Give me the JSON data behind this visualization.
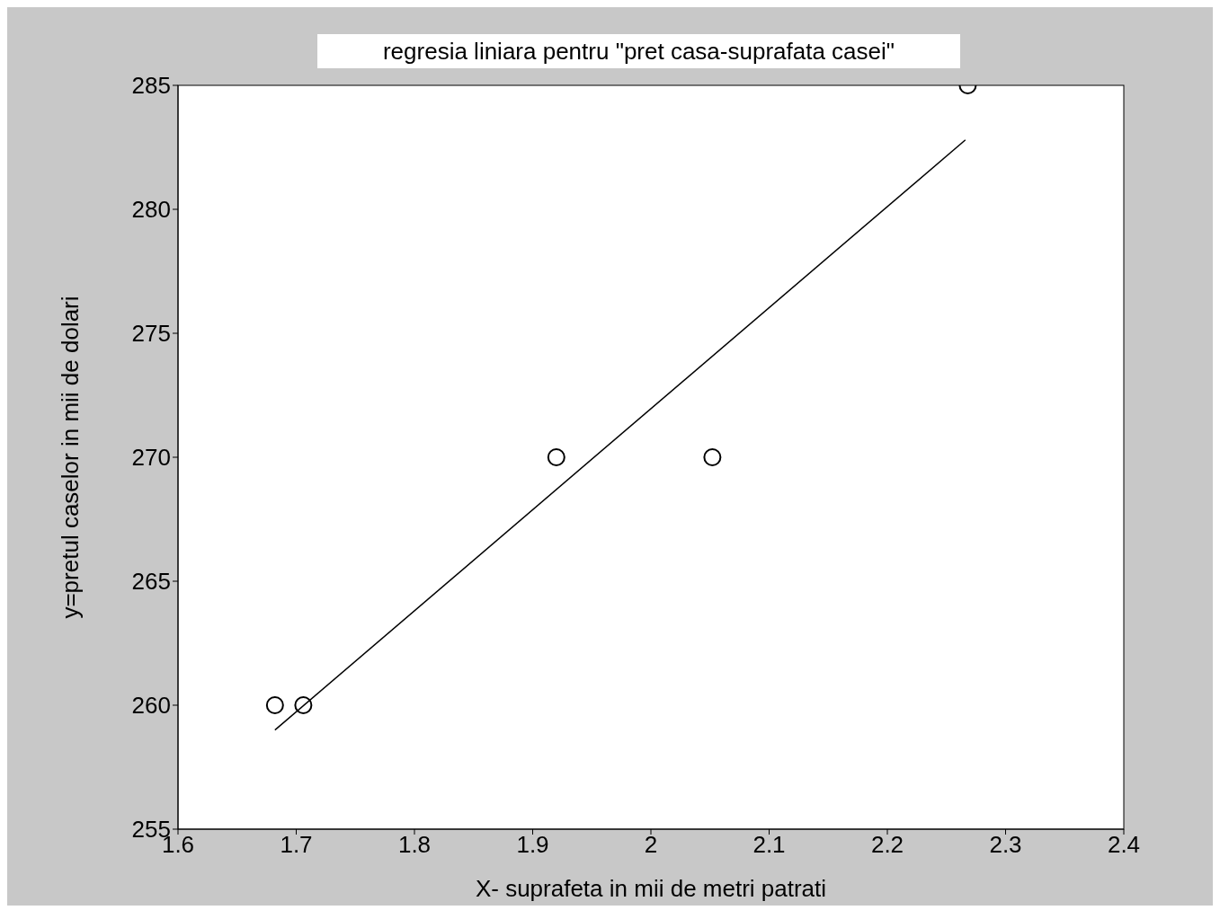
{
  "chart_data": {
    "type": "scatter",
    "title": "regresia liniara pentru \"pret casa-suprafata casei\"",
    "xlabel": "X-  suprafeta in mii de metri patrati",
    "ylabel": "y=pretul caselor in mii de dolari",
    "xlim": [
      1.6,
      2.4
    ],
    "xticks": [
      1.6,
      1.7,
      1.8,
      1.9,
      2,
      2.1,
      2.2,
      2.3,
      2.4
    ],
    "ylim": [
      255,
      285
    ],
    "yticks": [
      255,
      260,
      265,
      270,
      275,
      280,
      285
    ],
    "marker": "circle",
    "series": [
      {
        "color": "#000000",
        "x": [
          1.682,
          1.706,
          1.92,
          2.052,
          2.268
        ],
        "values": [
          260,
          260,
          270,
          270,
          285
        ]
      },
      {
        "type": "line",
        "color": "#000000",
        "marker": "none",
        "line_style": "solid",
        "x": [
          1.682,
          2.266
        ],
        "values": [
          259,
          282.8
        ]
      }
    ]
  }
}
